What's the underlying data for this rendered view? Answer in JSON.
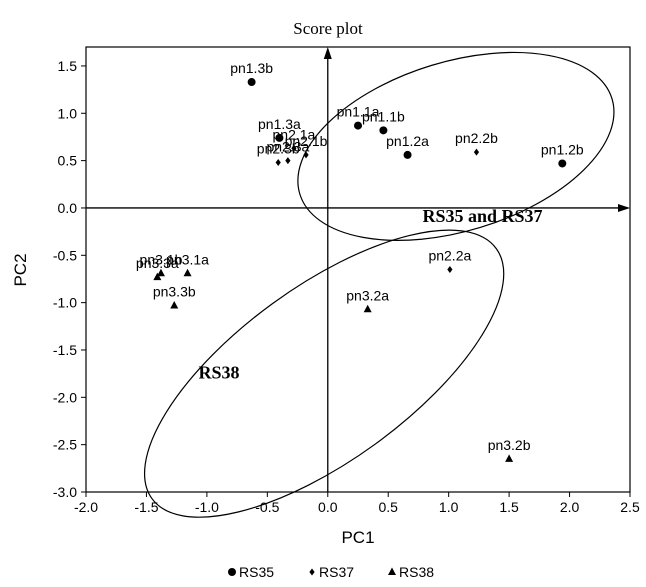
{
  "chart_data": {
    "type": "scatter",
    "title": "Score plot",
    "xlabel": "PC1",
    "ylabel": "PC2",
    "xlim": [
      -2.0,
      2.5
    ],
    "ylim": [
      -3.0,
      1.7
    ],
    "xticks": [
      -2.0,
      -1.5,
      -1.0,
      -0.5,
      0.0,
      0.5,
      1.0,
      1.5,
      2.0,
      2.5
    ],
    "xtick_labels": [
      "-2.0",
      "-1.5",
      "-1.0",
      "-0.5",
      "0.0",
      "0.5",
      "1.0",
      "1.5",
      "2.0",
      "2.5"
    ],
    "yticks": [
      1.5,
      1.0,
      0.5,
      0.0,
      -0.5,
      -1.0,
      -1.5,
      -2.0,
      -2.5,
      -3.0
    ],
    "ytick_labels": [
      "1.5",
      "1.0",
      "0.5",
      "0.0",
      "-0.5",
      "-1.0",
      "-1.5",
      "-2.0",
      "-2.5",
      "-3.0"
    ],
    "legend_position": "bottom",
    "series": [
      {
        "name": "RS35",
        "marker": "circle",
        "points": [
          {
            "label": "pn1.3b",
            "x": -0.63,
            "y": 1.33
          },
          {
            "label": "pn1.3a",
            "x": -0.4,
            "y": 0.74
          },
          {
            "label": "pn1.1a",
            "x": 0.25,
            "y": 0.87
          },
          {
            "label": "pn1.1b",
            "x": 0.46,
            "y": 0.82
          },
          {
            "label": "pn1.2a",
            "x": 0.66,
            "y": 0.56
          },
          {
            "label": "pn1.2b",
            "x": 1.94,
            "y": 0.47
          }
        ]
      },
      {
        "name": "RS37",
        "marker": "diamond",
        "points": [
          {
            "label": "pn2.1a",
            "x": -0.28,
            "y": 0.63
          },
          {
            "label": "pn2.1b",
            "x": -0.18,
            "y": 0.56
          },
          {
            "label": "pn2.3a",
            "x": -0.33,
            "y": 0.5
          },
          {
            "label": "pn2.3b",
            "x": -0.41,
            "y": 0.48
          },
          {
            "label": "pn2.2b",
            "x": 1.23,
            "y": 0.59
          },
          {
            "label": "pn2.2a",
            "x": 1.01,
            "y": -0.65
          }
        ]
      },
      {
        "name": "RS38",
        "marker": "triangle",
        "points": [
          {
            "label": "pn3.1b",
            "x": -1.38,
            "y": -0.69
          },
          {
            "label": "pn3.1a",
            "x": -1.16,
            "y": -0.69
          },
          {
            "label": "pn3.3a",
            "x": -1.41,
            "y": -0.73
          },
          {
            "label": "pn3.3b",
            "x": -1.27,
            "y": -1.03
          },
          {
            "label": "pn3.2a",
            "x": 0.33,
            "y": -1.07
          },
          {
            "label": "pn3.2b",
            "x": 1.5,
            "y": -2.65
          }
        ]
      }
    ],
    "annotations": [
      {
        "text": "RS35 and RS37",
        "x": 1.28,
        "y": -0.15
      },
      {
        "text": "RS38",
        "x": -0.9,
        "y": -1.8
      }
    ],
    "ellipses": [
      {
        "name": "rs35-rs37-ellipse",
        "cx": 1.06,
        "cy": 0.65,
        "rx": 1.35,
        "ry": 0.7,
        "angle": -17
      },
      {
        "name": "rs38-ellipse",
        "cx": -0.03,
        "cy": -1.75,
        "rx": 1.76,
        "ry": 0.72,
        "angle": -36
      }
    ]
  }
}
